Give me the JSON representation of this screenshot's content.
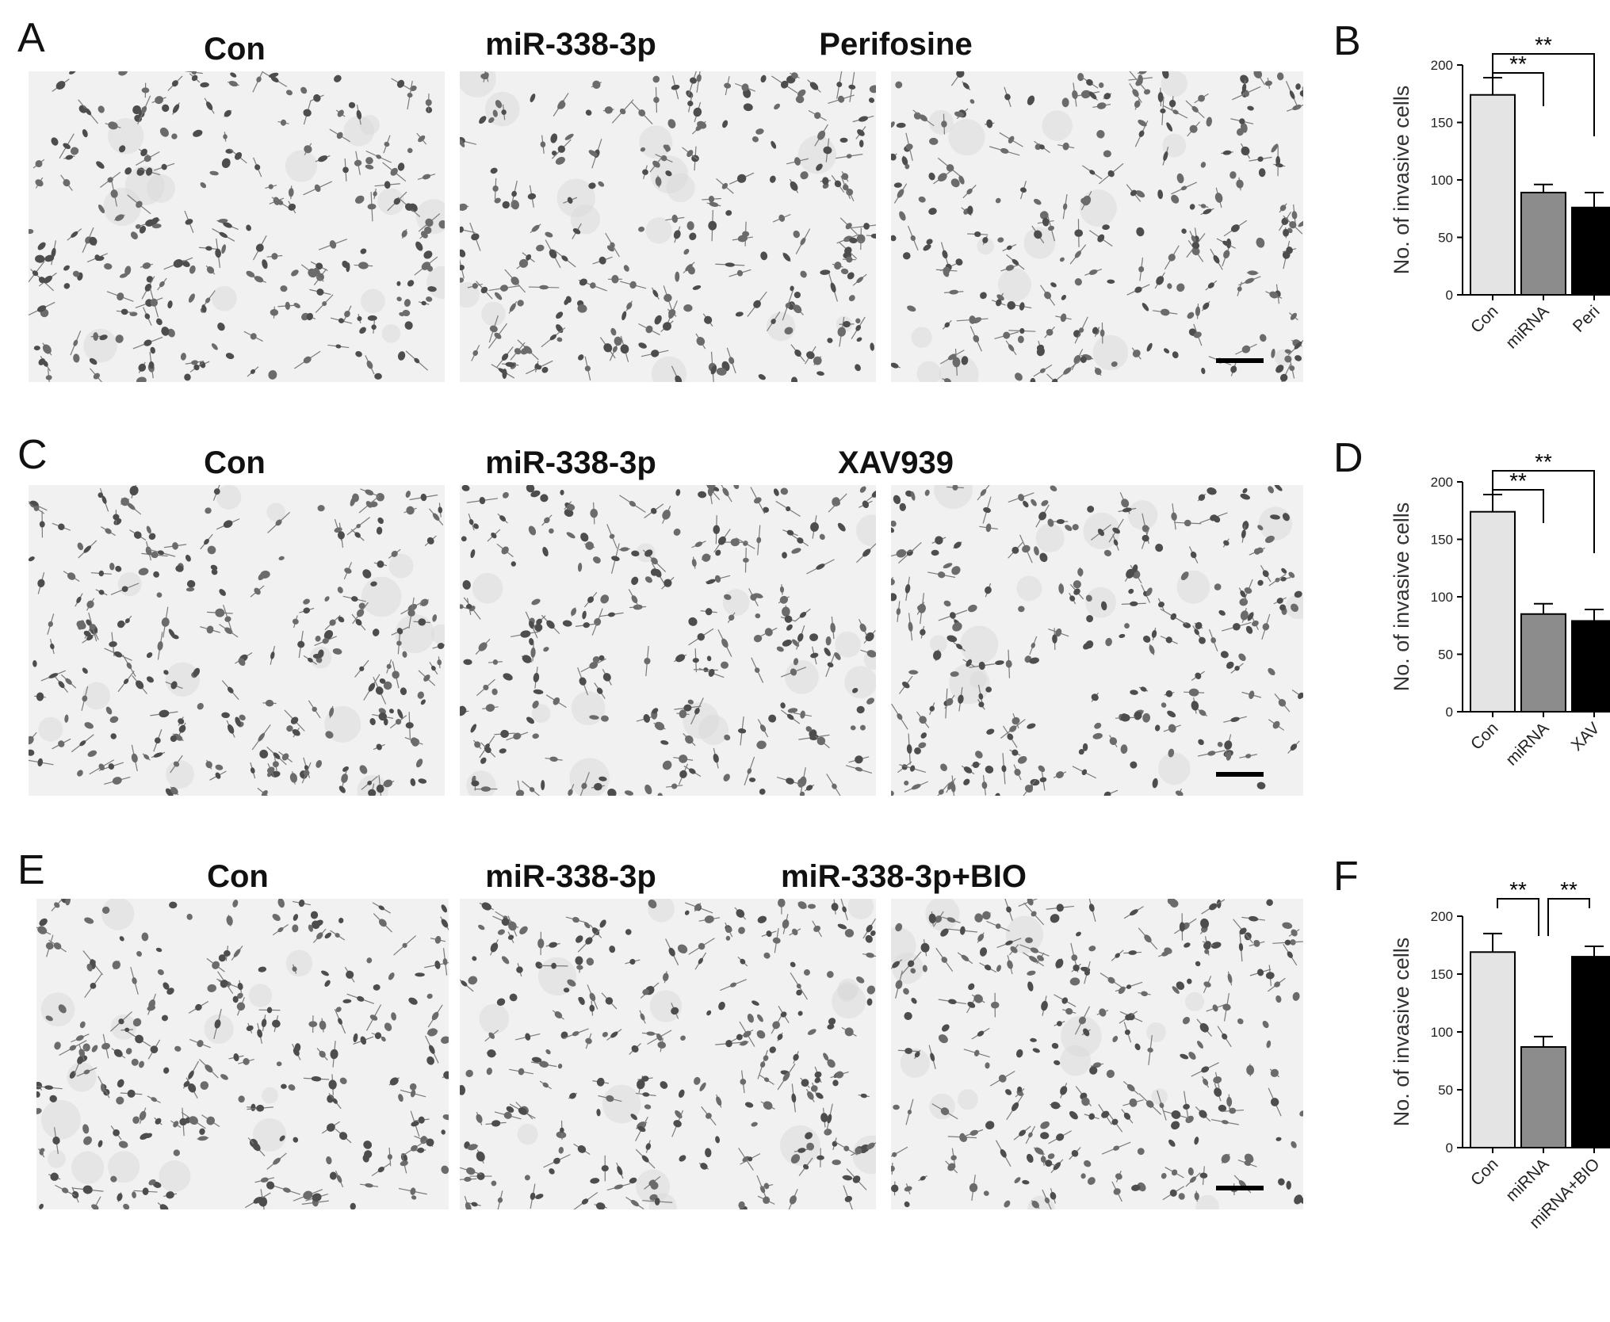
{
  "rows": [
    {
      "letter": "A",
      "titles": [
        "Con",
        "miR-338-3p",
        "Perifosine"
      ],
      "chart_letter": "B"
    },
    {
      "letter": "C",
      "titles": [
        "Con",
        "miR-338-3p",
        "XAV939"
      ],
      "chart_letter": "D"
    },
    {
      "letter": "E",
      "titles": [
        "Con",
        "miR-338-3p",
        "miR-338-3p+BIO"
      ],
      "chart_letter": "F"
    }
  ],
  "chart_data": [
    {
      "type": "bar",
      "categories": [
        "Con",
        "miRNA",
        "Peri"
      ],
      "values": [
        174,
        89,
        76
      ],
      "errors": [
        15,
        7,
        13
      ],
      "colors": [
        "#e4e4e4",
        "#8c8c8c",
        "#000000"
      ],
      "ylabel": "No. of invasive cells",
      "ylim": [
        0,
        200
      ],
      "yticks": [
        0,
        50,
        100,
        150,
        200
      ],
      "significance": [
        {
          "from": 0,
          "to": 1,
          "label": "**"
        },
        {
          "from": 0,
          "to": 2,
          "label": "**"
        }
      ]
    },
    {
      "type": "bar",
      "categories": [
        "Con",
        "miRNA",
        "XAV"
      ],
      "values": [
        174,
        85,
        79
      ],
      "errors": [
        15,
        9,
        10
      ],
      "colors": [
        "#e4e4e4",
        "#8c8c8c",
        "#000000"
      ],
      "ylabel": "No. of invasive cells",
      "ylim": [
        0,
        200
      ],
      "yticks": [
        0,
        50,
        100,
        150,
        200
      ],
      "significance": [
        {
          "from": 0,
          "to": 1,
          "label": "**"
        },
        {
          "from": 0,
          "to": 2,
          "label": "**"
        }
      ]
    },
    {
      "type": "bar",
      "categories": [
        "Con",
        "miRNA",
        "miRNA+BIO"
      ],
      "values": [
        169,
        87,
        165
      ],
      "errors": [
        16,
        9,
        9
      ],
      "colors": [
        "#e4e4e4",
        "#8c8c8c",
        "#000000"
      ],
      "ylabel": "No. of invasive cells",
      "ylim": [
        0,
        200
      ],
      "yticks": [
        0,
        50,
        100,
        150,
        200
      ],
      "significance": [
        {
          "from": 0,
          "to": 1,
          "label": "**"
        },
        {
          "from": 1,
          "to": 2,
          "label": "**"
        }
      ]
    }
  ]
}
